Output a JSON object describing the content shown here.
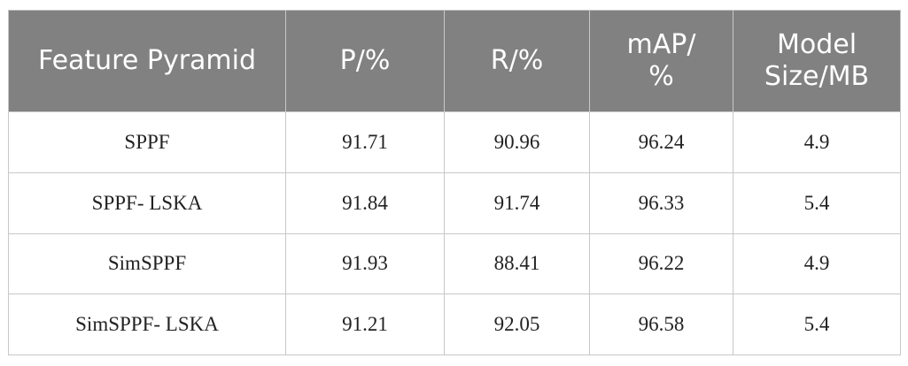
{
  "table": {
    "header": [
      "Feature Pyramid",
      "P/%",
      "R/%",
      "mAP/%",
      "Model Size/MB"
    ],
    "rows": [
      [
        "SPPF",
        "91.71",
        "90.96",
        "96.24",
        "4.9"
      ],
      [
        "SPPF- LSKA",
        "91.84",
        "91.74",
        "96.33",
        "5.4"
      ],
      [
        "SimSPPF",
        "91.93",
        "88.41",
        "96.22",
        "4.9"
      ],
      [
        "SimSPPF- LSKA",
        "91.21",
        "92.05",
        "96.58",
        "5.4"
      ]
    ]
  }
}
